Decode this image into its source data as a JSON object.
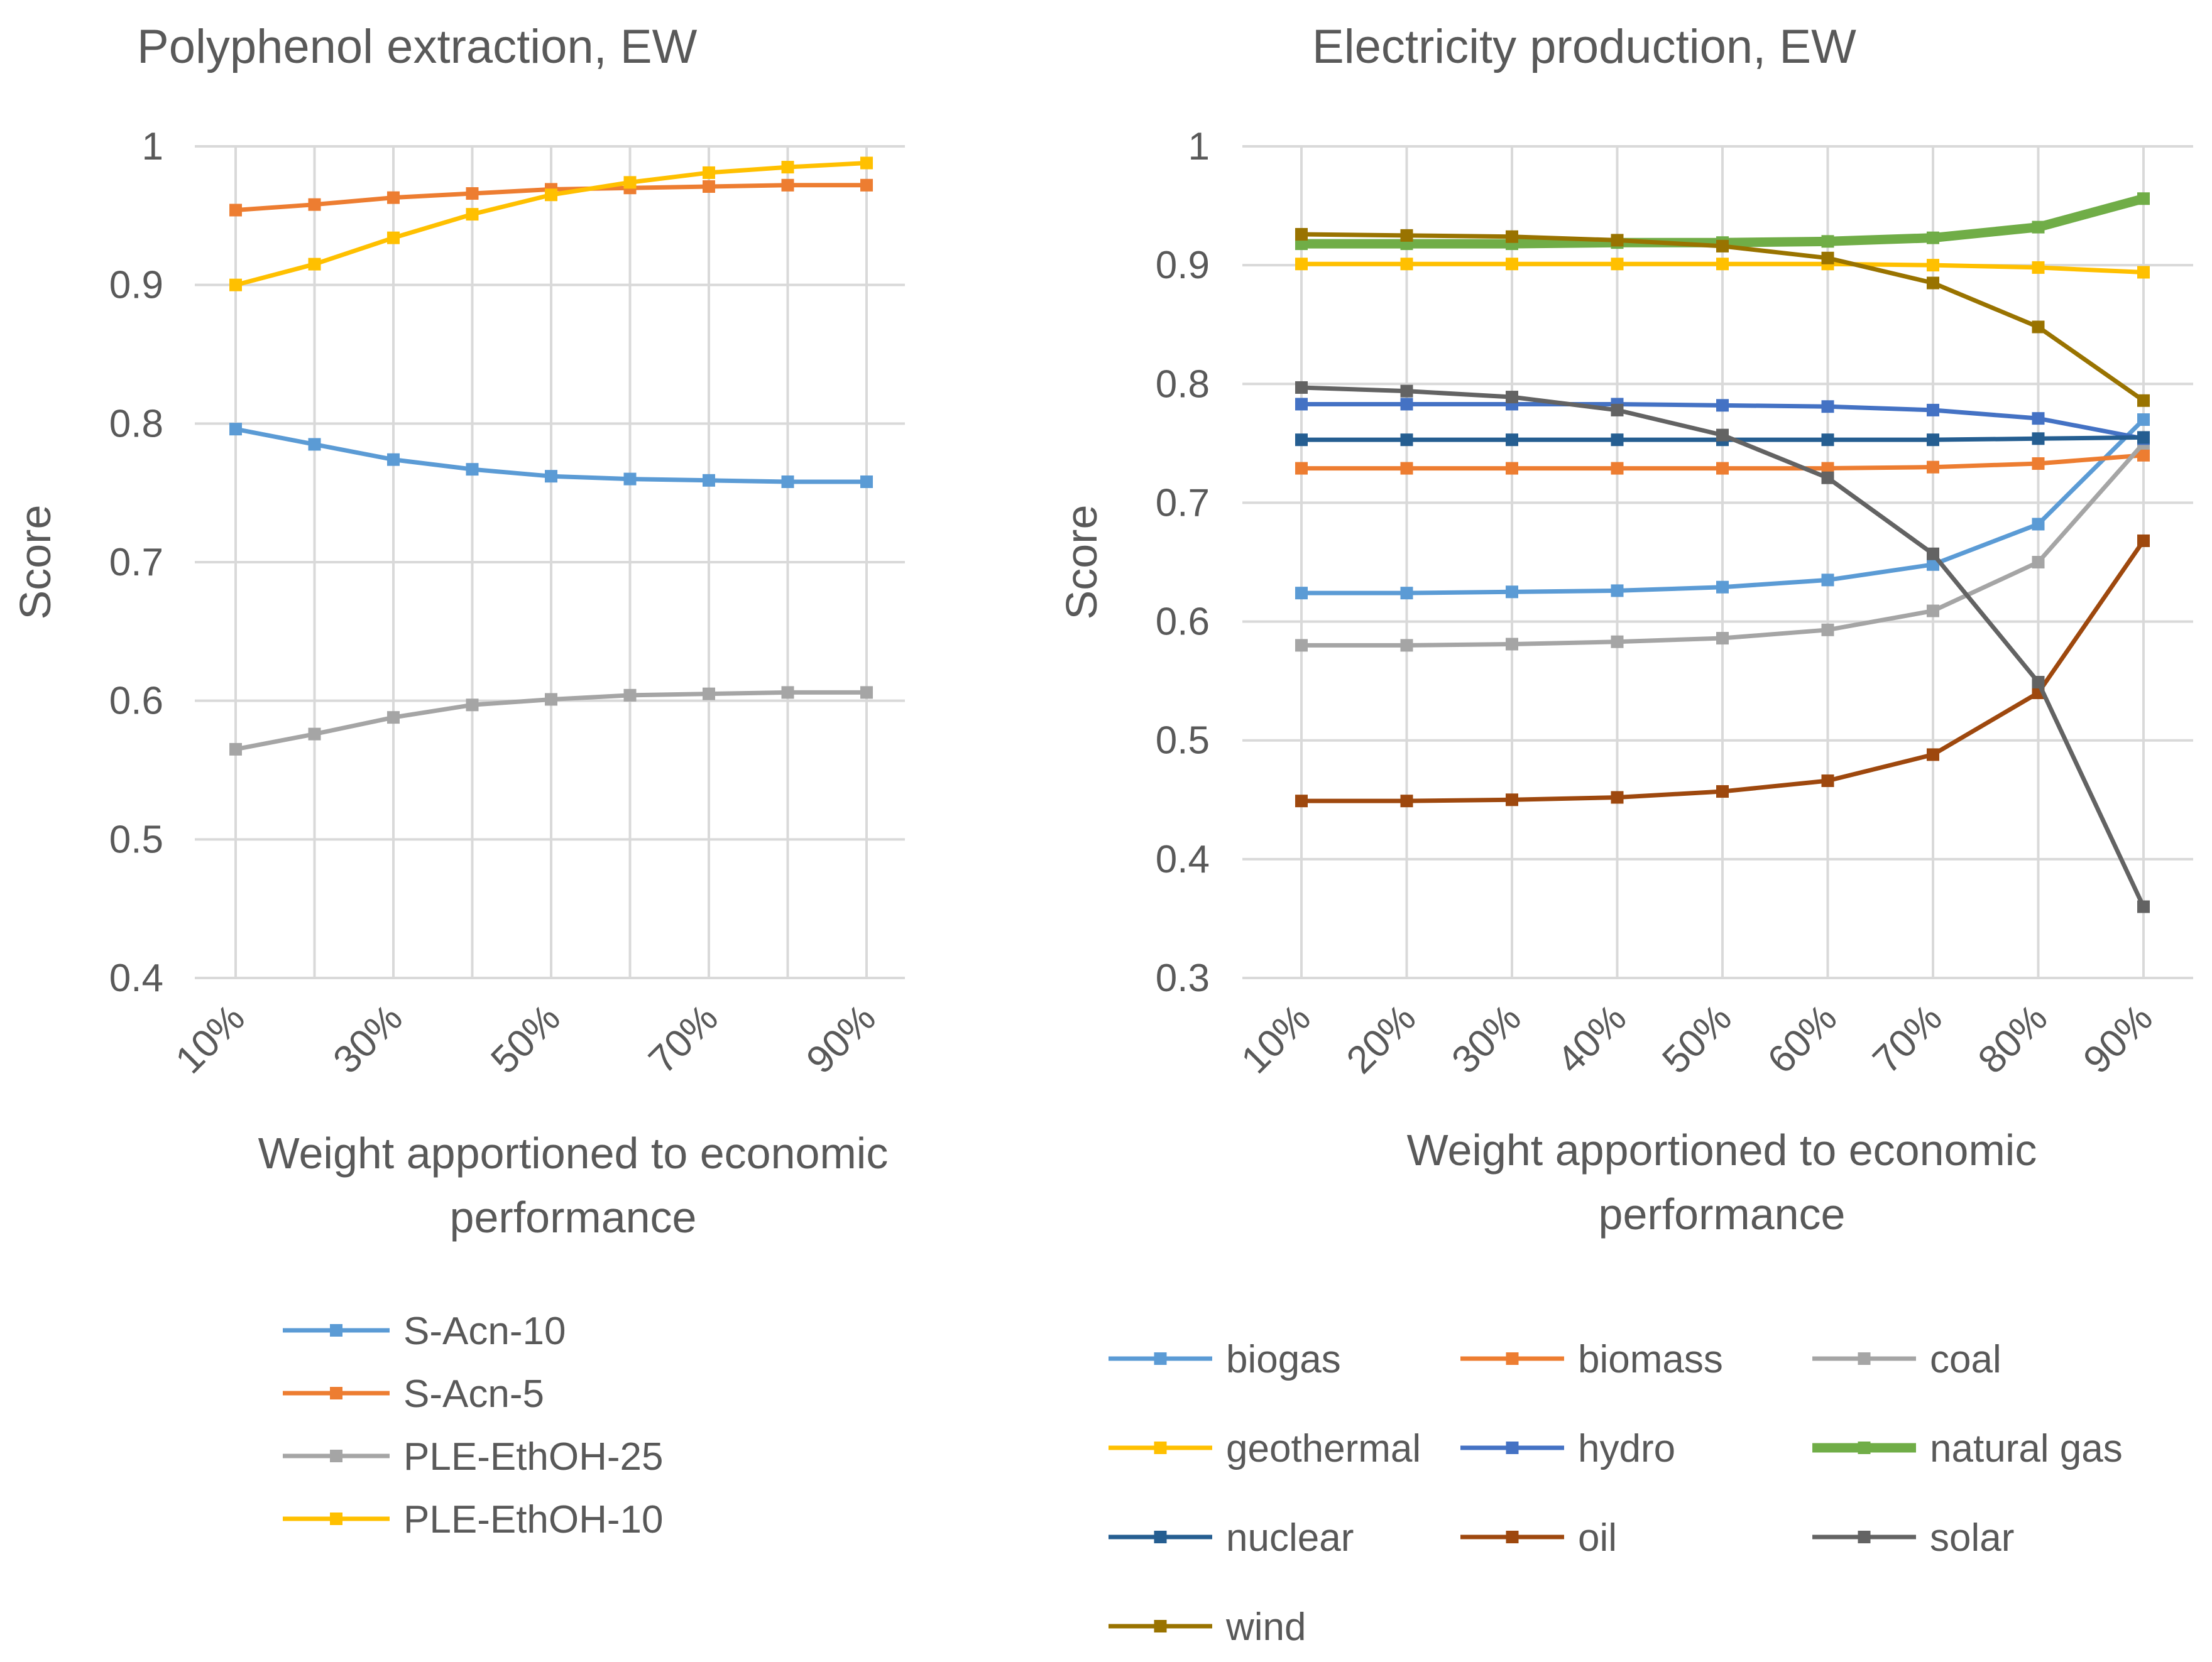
{
  "chart_data": [
    {
      "type": "line",
      "title": "Polyphenol extraction, EW",
      "xlabel_lines": [
        "Weight apportioned to economic",
        "performance"
      ],
      "ylabel": "Score",
      "ylim": [
        0.4,
        1.0
      ],
      "ytick_labels": [
        "0.4",
        "0.5",
        "0.6",
        "0.7",
        "0.8",
        "0.9",
        "1"
      ],
      "x": [
        0.1,
        0.2,
        0.3,
        0.4,
        0.5,
        0.6,
        0.7,
        0.8,
        0.9
      ],
      "xtick_labels": [
        "10%",
        "",
        "30%",
        "",
        "50%",
        "",
        "70%",
        "",
        "90%"
      ],
      "legend_position": "bottom",
      "series": [
        {
          "name": "S-Acn-10",
          "color": "#5B9BD5",
          "values": [
            0.796,
            0.785,
            0.774,
            0.767,
            0.762,
            0.76,
            0.759,
            0.758,
            0.758
          ]
        },
        {
          "name": "S-Acn-5",
          "color": "#ED7D31",
          "values": [
            0.954,
            0.958,
            0.963,
            0.966,
            0.969,
            0.97,
            0.971,
            0.972,
            0.972
          ]
        },
        {
          "name": "PLE-EthOH-25",
          "color": "#A5A5A5",
          "values": [
            0.565,
            0.576,
            0.588,
            0.597,
            0.601,
            0.604,
            0.605,
            0.606,
            0.606
          ]
        },
        {
          "name": "PLE-EthOH-10",
          "color": "#FFC000",
          "values": [
            0.9,
            0.915,
            0.934,
            0.951,
            0.965,
            0.974,
            0.981,
            0.985,
            0.988
          ]
        }
      ]
    },
    {
      "type": "line",
      "title": "Electricity production, EW",
      "xlabel_lines": [
        "Weight apportioned to economic",
        "performance"
      ],
      "ylabel": "Score",
      "ylim": [
        0.3,
        1.0
      ],
      "ytick_labels": [
        "0.3",
        "0.4",
        "0.5",
        "0.6",
        "0.7",
        "0.8",
        "0.9",
        "1"
      ],
      "x": [
        0.1,
        0.2,
        0.3,
        0.4,
        0.5,
        0.6,
        0.7,
        0.8,
        0.9
      ],
      "xtick_labels": [
        "10%",
        "20%",
        "30%",
        "40%",
        "50%",
        "60%",
        "70%",
        "80%",
        "90%"
      ],
      "legend_position": "bottom",
      "series": [
        {
          "name": "biogas",
          "color": "#5B9BD5",
          "values": [
            0.624,
            0.624,
            0.625,
            0.626,
            0.629,
            0.635,
            0.648,
            0.682,
            0.77
          ]
        },
        {
          "name": "biomass",
          "color": "#ED7D31",
          "values": [
            0.729,
            0.729,
            0.729,
            0.729,
            0.729,
            0.729,
            0.73,
            0.733,
            0.74
          ]
        },
        {
          "name": "coal",
          "color": "#A5A5A5",
          "values": [
            0.58,
            0.58,
            0.581,
            0.583,
            0.586,
            0.593,
            0.609,
            0.65,
            0.75
          ]
        },
        {
          "name": "geothermal",
          "color": "#FFC000",
          "values": [
            0.901,
            0.901,
            0.901,
            0.901,
            0.901,
            0.901,
            0.9,
            0.898,
            0.894
          ]
        },
        {
          "name": "hydro",
          "color": "#4472C4",
          "values": [
            0.783,
            0.783,
            0.783,
            0.783,
            0.782,
            0.781,
            0.778,
            0.771,
            0.754
          ]
        },
        {
          "name": "natural gas",
          "color": "#70AD47",
          "values": [
            0.918,
            0.918,
            0.918,
            0.919,
            0.919,
            0.92,
            0.923,
            0.932,
            0.956
          ]
        },
        {
          "name": "nuclear",
          "color": "#255E91",
          "values": [
            0.753,
            0.753,
            0.753,
            0.753,
            0.753,
            0.753,
            0.753,
            0.754,
            0.755
          ]
        },
        {
          "name": "oil",
          "color": "#9E480E",
          "values": [
            0.449,
            0.449,
            0.45,
            0.452,
            0.457,
            0.466,
            0.488,
            0.54,
            0.668
          ]
        },
        {
          "name": "solar",
          "color": "#636363",
          "values": [
            0.797,
            0.794,
            0.789,
            0.778,
            0.757,
            0.721,
            0.657,
            0.549,
            0.36
          ]
        },
        {
          "name": "wind",
          "color": "#997300",
          "values": [
            0.926,
            0.925,
            0.924,
            0.921,
            0.916,
            0.906,
            0.885,
            0.848,
            0.786
          ]
        }
      ]
    }
  ]
}
